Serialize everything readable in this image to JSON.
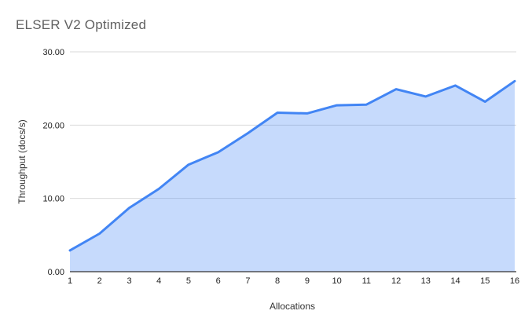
{
  "chart_data": {
    "type": "area",
    "title": "ELSER V2 Optimized",
    "xlabel": "Allocations",
    "ylabel": "Throughput (docs/s)",
    "x": [
      1,
      2,
      3,
      4,
      5,
      6,
      7,
      8,
      9,
      10,
      11,
      12,
      13,
      14,
      15,
      16
    ],
    "values": [
      2.9,
      5.2,
      8.7,
      11.3,
      14.6,
      16.3,
      18.9,
      21.7,
      21.6,
      22.7,
      22.8,
      24.9,
      23.9,
      25.4,
      23.2,
      26.0
    ],
    "ylim": [
      0,
      30
    ],
    "y_ticks": [
      "0.00",
      "10.00",
      "20.00",
      "30.00"
    ],
    "grid": true,
    "legend": "none",
    "colors": {
      "line": "#4285f4",
      "fill": "rgba(66,133,244,0.3)",
      "gridline": "#d9d9d9",
      "axis_line": "#333333",
      "tick_label": "#202020",
      "axis_title": "#333333",
      "title": "#616161",
      "background": "#ffffff"
    }
  }
}
